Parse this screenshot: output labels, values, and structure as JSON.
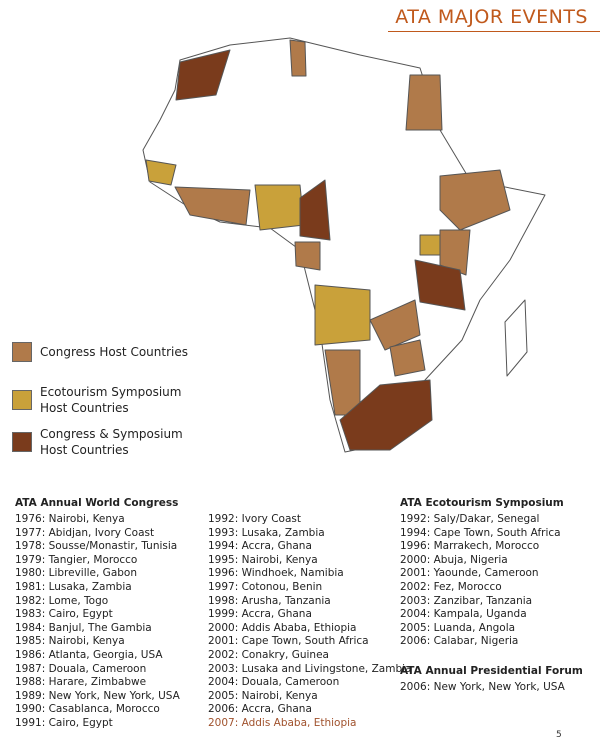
{
  "header": {
    "title": "ATA MAJOR EVENTS"
  },
  "legend": [
    {
      "label": "Congress Host Countries",
      "color": "#b07a4a"
    },
    {
      "label": "Ecotourism Symposium Host Countries",
      "color": "#c9a13a"
    },
    {
      "label": "Congress & Symposium Host Countries",
      "color": "#7a3b1c"
    }
  ],
  "congress": {
    "title": "ATA  Annual World Congress",
    "columns": [
      [
        "1976: Nairobi, Kenya",
        "1977: Abidjan, Ivory Coast",
        "1978: Sousse/Monastir, Tunisia",
        "1979: Tangier, Morocco",
        "1980: Libreville, Gabon",
        "1981: Lusaka, Zambia",
        "1982: Lome, Togo",
        "1983: Cairo, Egypt",
        "1984: Banjul, The Gambia",
        "1985: Nairobi, Kenya",
        "1986: Atlanta, Georgia, USA",
        "1987: Douala, Cameroon",
        "1988: Harare, Zimbabwe",
        "1989: New York, New York, USA",
        "1990: Casablanca, Morocco",
        "1991: Cairo, Egypt"
      ],
      [
        "1992: Ivory Coast",
        "1993: Lusaka, Zambia",
        "1994: Accra, Ghana",
        "1995: Nairobi, Kenya",
        "1996: Windhoek, Namibia",
        "1997: Cotonou, Benin",
        "1998: Arusha, Tanzania",
        "1999: Accra, Ghana",
        "2000: Addis Ababa, Ethiopia",
        "2001: Cape Town, South Africa",
        "2002: Conakry, Guinea",
        "2003: Lusaka and Livingstone, Zambia",
        "2004: Douala, Cameroon",
        "2005: Nairobi, Kenya",
        "2006: Accra, Ghana",
        "2007: Addis Ababa, Ethiopia"
      ]
    ]
  },
  "symposium": {
    "title": "ATA  Ecotourism Symposium",
    "entries": [
      "1992: Saly/Dakar, Senegal",
      "1994: Cape Town, South Africa",
      "1996: Marrakech, Morocco",
      "2000: Abuja, Nigeria",
      "2001: Yaounde, Cameroon",
      "2002: Fez, Morocco",
      "2003: Zanzibar, Tanzania",
      "2004: Kampala, Uganda",
      "2005: Luanda, Angola",
      "2006: Calabar, Nigeria"
    ]
  },
  "forum": {
    "title": "ATA Annual Presidential Forum",
    "entries": [
      "2006: New York, New York, USA"
    ]
  },
  "page_number": "5"
}
